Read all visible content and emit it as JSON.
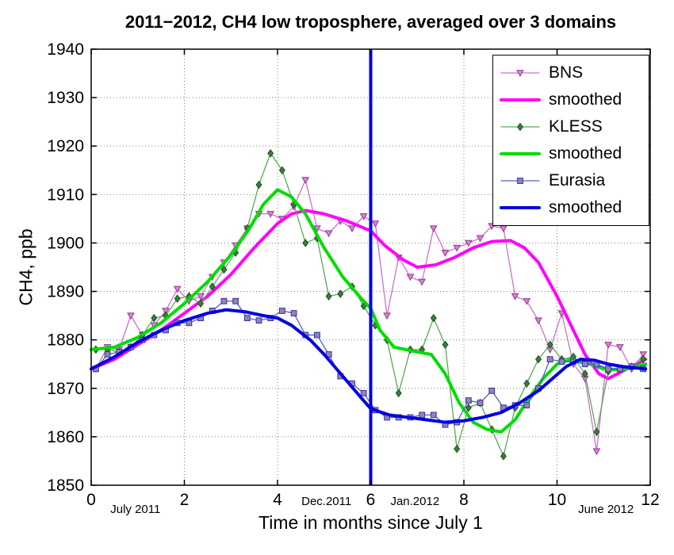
{
  "chart_data": {
    "type": "line",
    "title": "2011−2012, CH4 low troposphere, averaged over 3 domains",
    "xlabel": "Time in months since July 1",
    "ylabel": "CH4, ppb",
    "xlim": [
      0,
      12
    ],
    "ylim": [
      1850,
      1940
    ],
    "xticks": [
      0,
      2,
      4,
      6,
      8,
      10,
      12
    ],
    "yticks": [
      1850,
      1860,
      1870,
      1880,
      1890,
      1900,
      1910,
      1920,
      1930,
      1940
    ],
    "grid": "dotted",
    "grid_color": "#808080",
    "legend_position": "top-right",
    "vline": {
      "x": 6,
      "color": "#0000e0",
      "width": 4
    },
    "annotations": [
      {
        "text": "July 2011",
        "x": 0.95,
        "row": 2
      },
      {
        "text": "Dec.2011",
        "x": 5.05,
        "row": 1
      },
      {
        "text": "Jan.2012",
        "x": 6.95,
        "row": 1
      },
      {
        "text": "June 2012",
        "x": 11.05,
        "row": 2
      }
    ],
    "series": [
      {
        "id": "bns-raw",
        "label": "BNS",
        "color": "#cc70cc",
        "width": 1.3,
        "marker": "triangle-down",
        "marker_fill": "#e080d8",
        "marker_stroke": "#8b3a8b",
        "x": [
          0.1,
          0.35,
          0.6,
          0.85,
          1.1,
          1.35,
          1.6,
          1.85,
          2.1,
          2.35,
          2.6,
          2.85,
          3.1,
          3.35,
          3.6,
          3.85,
          4.1,
          4.35,
          4.6,
          4.85,
          5.1,
          5.35,
          5.6,
          5.85,
          6.1,
          6.35,
          6.6,
          6.85,
          7.1,
          7.35,
          7.6,
          7.85,
          8.1,
          8.35,
          8.6,
          8.85,
          9.1,
          9.35,
          9.6,
          9.85,
          10.1,
          10.35,
          10.6,
          10.85,
          11.1,
          11.35,
          11.6,
          11.85
        ],
        "y": [
          1874,
          1878.5,
          1878,
          1885,
          1881,
          1883,
          1886,
          1890.5,
          1888,
          1889,
          1893,
          1896,
          1899.5,
          1903,
          1906,
          1906,
          1905,
          1907.5,
          1913,
          1903,
          1902,
          1904.5,
          1903,
          1905.5,
          1904,
          1885,
          1897,
          1893,
          1892,
          1903,
          1898,
          1899,
          1900,
          1901,
          1903.5,
          1903,
          1889,
          1888,
          1884,
          1878,
          1885.5,
          1875,
          1872,
          1857,
          1879,
          1878.5,
          1874,
          1877
        ]
      },
      {
        "id": "bns-smoothed",
        "label": "smoothed",
        "color": "#ff00ff",
        "width": 4,
        "marker": null,
        "x": [
          0,
          0.5,
          1,
          1.5,
          2,
          2.5,
          3,
          3.5,
          4,
          4.3,
          4.6,
          5,
          5.5,
          6,
          6.3,
          6.7,
          7,
          7.4,
          7.8,
          8.2,
          8.6,
          9,
          9.3,
          9.6,
          10,
          10.3,
          10.6,
          10.9,
          11.1,
          11.4,
          11.7,
          11.9
        ],
        "y": [
          1874,
          1876,
          1879,
          1882,
          1885.5,
          1889,
          1893.5,
          1899,
          1904,
          1906,
          1906.7,
          1906,
          1904.5,
          1902.5,
          1899.5,
          1896.5,
          1895,
          1895.5,
          1897,
          1899,
          1900.3,
          1900.5,
          1899,
          1896,
          1889,
          1883,
          1877,
          1873,
          1872,
          1873.5,
          1875,
          1876
        ]
      },
      {
        "id": "kless-raw",
        "label": "KLESS",
        "color": "#55aa55",
        "width": 1.3,
        "marker": "diamond",
        "marker_fill": "#3a7d3a",
        "marker_stroke": "#245224",
        "x": [
          0.1,
          0.35,
          0.6,
          0.85,
          1.1,
          1.35,
          1.6,
          1.85,
          2.1,
          2.35,
          2.6,
          2.85,
          3.1,
          3.35,
          3.6,
          3.85,
          4.1,
          4.35,
          4.6,
          4.85,
          5.1,
          5.35,
          5.6,
          5.85,
          6.1,
          6.35,
          6.6,
          6.85,
          7.1,
          7.35,
          7.6,
          7.85,
          8.1,
          8.35,
          8.6,
          8.85,
          9.1,
          9.35,
          9.6,
          9.85,
          10.1,
          10.35,
          10.6,
          10.85,
          11.1,
          11.35,
          11.6,
          11.85
        ],
        "y": [
          1878,
          1878,
          1877.5,
          1878.5,
          1881,
          1884.5,
          1885,
          1888.5,
          1889,
          1887.5,
          1891,
          1894.5,
          1898,
          1903,
          1912,
          1918.5,
          1915,
          1908,
          1900,
          1901,
          1889,
          1889.5,
          1891,
          1887,
          1883,
          1880,
          1869,
          1878,
          1878,
          1884.5,
          1879,
          1857.5,
          1866,
          1867,
          1861.5,
          1856,
          1866,
          1871,
          1876,
          1879,
          1876,
          1876.5,
          1873,
          1861,
          1873.5,
          1874,
          1874.5,
          1876
        ]
      },
      {
        "id": "kless-smoothed",
        "label": "smoothed",
        "color": "#00dd00",
        "width": 4,
        "marker": null,
        "x": [
          0,
          0.5,
          1,
          1.5,
          2,
          2.5,
          3,
          3.4,
          3.7,
          4,
          4.3,
          4.6,
          5,
          5.4,
          5.8,
          6,
          6.2,
          6.5,
          7,
          7.3,
          7.6,
          7.9,
          8.2,
          8.5,
          8.8,
          9.1,
          9.4,
          9.7,
          10,
          10.3,
          10.7,
          11,
          11.4,
          11.7,
          11.9
        ],
        "y": [
          1878,
          1878.5,
          1880.5,
          1883.5,
          1887.5,
          1892,
          1897.5,
          1903,
          1908,
          1911,
          1909.5,
          1906,
          1899,
          1893,
          1888.5,
          1886.5,
          1882,
          1878.5,
          1877.5,
          1877,
          1873,
          1867,
          1863,
          1861.5,
          1861,
          1863.5,
          1868,
          1872,
          1875,
          1876,
          1875,
          1874,
          1873.8,
          1874.5,
          1875
        ]
      },
      {
        "id": "eurasia-raw",
        "label": "Eurasia",
        "color": "#4d5fd0",
        "width": 1.3,
        "marker": "square",
        "marker_fill": "#9383b0",
        "marker_stroke": "#3333aa",
        "x": [
          0.1,
          0.35,
          0.6,
          0.85,
          1.1,
          1.35,
          1.6,
          1.85,
          2.1,
          2.35,
          2.6,
          2.85,
          3.1,
          3.35,
          3.6,
          3.85,
          4.1,
          4.35,
          4.6,
          4.85,
          5.1,
          5.35,
          5.6,
          5.85,
          6.1,
          6.35,
          6.6,
          6.85,
          7.1,
          7.35,
          7.6,
          7.85,
          8.1,
          8.35,
          8.6,
          8.85,
          9.1,
          9.35,
          9.6,
          9.85,
          10.1,
          10.35,
          10.6,
          10.85,
          11.1,
          11.35,
          11.6,
          11.85
        ],
        "y": [
          1874,
          1877,
          1877.5,
          1878.5,
          1880,
          1881,
          1882,
          1883.5,
          1883.5,
          1884.5,
          1886,
          1888,
          1888,
          1884.5,
          1884,
          1884.5,
          1886,
          1885.5,
          1881,
          1881,
          1877,
          1872.5,
          1871,
          1869,
          1865.5,
          1864,
          1864,
          1864,
          1864.5,
          1864.5,
          1862.5,
          1863,
          1867.5,
          1867,
          1869.5,
          1866,
          1866.5,
          1866.5,
          1870,
          1876,
          1875.5,
          1875.5,
          1875,
          1875,
          1874,
          1874,
          1874.5,
          1874
        ]
      },
      {
        "id": "eurasia-smoothed",
        "label": "smoothed",
        "color": "#0000e0",
        "width": 4,
        "marker": null,
        "x": [
          0,
          0.5,
          1,
          1.5,
          2,
          2.5,
          2.9,
          3.3,
          3.7,
          4,
          4.3,
          4.7,
          5,
          5.4,
          5.8,
          6,
          6.4,
          6.8,
          7.2,
          7.6,
          8,
          8.4,
          8.8,
          9.2,
          9.6,
          9.9,
          10.2,
          10.5,
          10.8,
          11.1,
          11.4,
          11.7,
          11.9
        ],
        "y": [
          1874,
          1876.5,
          1879.5,
          1882,
          1884,
          1885.5,
          1886.2,
          1885.8,
          1885,
          1884.5,
          1883,
          1880,
          1877,
          1872.5,
          1868,
          1865.8,
          1864.5,
          1864,
          1863.5,
          1863,
          1863.3,
          1864,
          1865,
          1867,
          1869.5,
          1872,
          1874.5,
          1876,
          1875.8,
          1875,
          1874.5,
          1874.2,
          1874
        ]
      }
    ],
    "legend": [
      "BNS",
      "smoothed",
      "KLESS",
      "smoothed",
      "Eurasia",
      "smoothed"
    ]
  }
}
